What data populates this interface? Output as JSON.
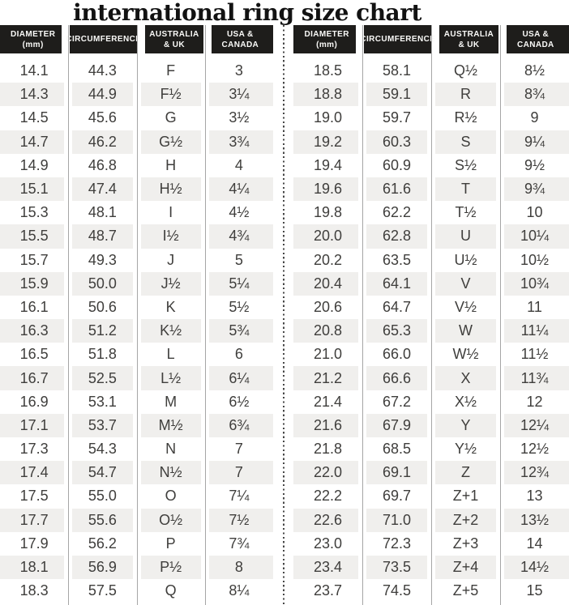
{
  "title": "international ring size chart",
  "chart_data": [
    {
      "type": "table",
      "title": "international ring size chart — left half",
      "columns": [
        "DIAMETER\n(mm)",
        "CIRCUMFERENCE",
        "AUSTRALIA\n& UK",
        "USA &\nCANADA"
      ],
      "rows": [
        [
          "14.1",
          "44.3",
          "F",
          "3"
        ],
        [
          "14.3",
          "44.9",
          "F½",
          "3¼"
        ],
        [
          "14.5",
          "45.6",
          "G",
          "3½"
        ],
        [
          "14.7",
          "46.2",
          "G½",
          "3¾"
        ],
        [
          "14.9",
          "46.8",
          "H",
          "4"
        ],
        [
          "15.1",
          "47.4",
          "H½",
          "4¼"
        ],
        [
          "15.3",
          "48.1",
          "I",
          "4½"
        ],
        [
          "15.5",
          "48.7",
          "I½",
          "4¾"
        ],
        [
          "15.7",
          "49.3",
          "J",
          "5"
        ],
        [
          "15.9",
          "50.0",
          "J½",
          "5¼"
        ],
        [
          "16.1",
          "50.6",
          "K",
          "5½"
        ],
        [
          "16.3",
          "51.2",
          "K½",
          "5¾"
        ],
        [
          "16.5",
          "51.8",
          "L",
          "6"
        ],
        [
          "16.7",
          "52.5",
          "L½",
          "6¼"
        ],
        [
          "16.9",
          "53.1",
          "M",
          "6½"
        ],
        [
          "17.1",
          "53.7",
          "M½",
          "6¾"
        ],
        [
          "17.3",
          "54.3",
          "N",
          "7"
        ],
        [
          "17.4",
          "54.7",
          "N½",
          "7"
        ],
        [
          "17.5",
          "55.0",
          "O",
          "7¼"
        ],
        [
          "17.7",
          "55.6",
          "O½",
          "7½"
        ],
        [
          "17.9",
          "56.2",
          "P",
          "7¾"
        ],
        [
          "18.1",
          "56.9",
          "P½",
          "8"
        ],
        [
          "18.3",
          "57.5",
          "Q",
          "8¼"
        ]
      ]
    },
    {
      "type": "table",
      "title": "international ring size chart — right half",
      "columns": [
        "DIAMETER\n(mm)",
        "CIRCUMFERENCE",
        "AUSTRALIA\n& UK",
        "USA &\nCANADA"
      ],
      "rows": [
        [
          "18.5",
          "58.1",
          "Q½",
          "8½"
        ],
        [
          "18.8",
          "59.1",
          "R",
          "8¾"
        ],
        [
          "19.0",
          "59.7",
          "R½",
          "9"
        ],
        [
          "19.2",
          "60.3",
          "S",
          "9¼"
        ],
        [
          "19.4",
          "60.9",
          "S½",
          "9½"
        ],
        [
          "19.6",
          "61.6",
          "T",
          "9¾"
        ],
        [
          "19.8",
          "62.2",
          "T½",
          "10"
        ],
        [
          "20.0",
          "62.8",
          "U",
          "10¼"
        ],
        [
          "20.2",
          "63.5",
          "U½",
          "10½"
        ],
        [
          "20.4",
          "64.1",
          "V",
          "10¾"
        ],
        [
          "20.6",
          "64.7",
          "V½",
          "11"
        ],
        [
          "20.8",
          "65.3",
          "W",
          "11¼"
        ],
        [
          "21.0",
          "66.0",
          "W½",
          "11½"
        ],
        [
          "21.2",
          "66.6",
          "X",
          "11¾"
        ],
        [
          "21.4",
          "67.2",
          "X½",
          "12"
        ],
        [
          "21.6",
          "67.9",
          "Y",
          "12¼"
        ],
        [
          "21.8",
          "68.5",
          "Y½",
          "12½"
        ],
        [
          "22.0",
          "69.1",
          "Z",
          "12¾"
        ],
        [
          "22.2",
          "69.7",
          "Z+1",
          "13"
        ],
        [
          "22.6",
          "71.0",
          "Z+2",
          "13½"
        ],
        [
          "23.0",
          "72.3",
          "Z+3",
          "14"
        ],
        [
          "23.4",
          "73.5",
          "Z+4",
          "14½"
        ],
        [
          "23.7",
          "74.5",
          "Z+5",
          "15"
        ]
      ]
    }
  ],
  "colors": {
    "header_bg": "#1e1d1b",
    "header_text": "#fafaf8",
    "stripe": "#f0efed",
    "line": "#a6a6a6",
    "dot": "#474747",
    "text": "#3f3e3c",
    "title_color": "#121212"
  }
}
